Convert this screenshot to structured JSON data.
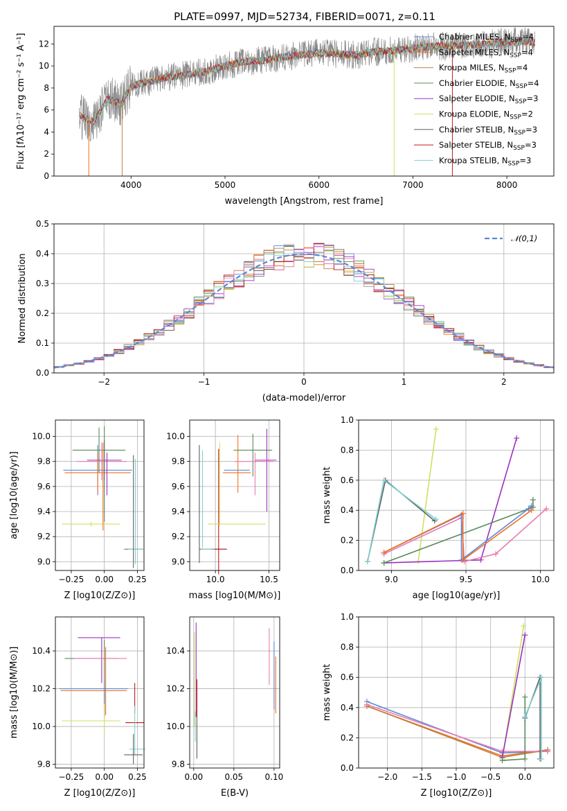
{
  "figure_title": "PLATE=0997, MJD=52734, FIBERID=0071, z=0.11",
  "colors": {
    "Chabrier MILES": "#5b87d8",
    "Salpeter MILES": "#f07020",
    "Kroupa MILES": "#c08040",
    "Chabrier ELODIE": "#5a8a5a",
    "Salpeter ELODIE": "#9a30c0",
    "Kroupa ELODIE": "#d0e060",
    "Chabrier STELIB": "#606060",
    "Salpeter STELIB": "#c01818",
    "Kroupa STELIB": "#80d0d0",
    "extra_pink": "#e87ab0",
    "normal_curve": "#5b87d8"
  },
  "chart_data": [
    {
      "id": "spectrum",
      "type": "line",
      "xlabel": "wavelength [Angstrom, rest frame]",
      "ylabel": "Flux [fλ10⁻¹⁷ erg cm⁻² s⁻¹ A⁻¹]",
      "xlim": [
        3180,
        8500
      ],
      "ylim": [
        0,
        13.6
      ],
      "xticks": [
        4000,
        5000,
        6000,
        7000,
        8000
      ],
      "yticks": [
        0,
        2,
        4,
        6,
        8,
        10,
        12
      ],
      "legend": [
        {
          "name": "Chabrier MILES",
          "n_ssp": "4"
        },
        {
          "name": "Salpeter MILES",
          "n_ssp": "4"
        },
        {
          "name": "Kroupa MILES",
          "n_ssp": "4"
        },
        {
          "name": "Chabrier ELODIE",
          "n_ssp": "4"
        },
        {
          "name": "Salpeter ELODIE",
          "n_ssp": "3"
        },
        {
          "name": "Kroupa ELODIE",
          "n_ssp": "2"
        },
        {
          "name": "Chabrier STELIB",
          "n_ssp": "3"
        },
        {
          "name": "Salpeter STELIB",
          "n_ssp": "3"
        },
        {
          "name": "Kroupa STELIB",
          "n_ssp": "3"
        }
      ],
      "legend_position": "right",
      "continuum": [
        [
          3450,
          5.5
        ],
        [
          3600,
          4.9
        ],
        [
          3750,
          7.0
        ],
        [
          3900,
          6.6
        ],
        [
          4000,
          8.2
        ],
        [
          4200,
          8.6
        ],
        [
          4400,
          9.0
        ],
        [
          4600,
          9.2
        ],
        [
          4800,
          9.5
        ],
        [
          5000,
          10.0
        ],
        [
          5200,
          10.4
        ],
        [
          5400,
          10.5
        ],
        [
          5600,
          10.8
        ],
        [
          5800,
          11.0
        ],
        [
          6000,
          11.2
        ],
        [
          6200,
          11.1
        ],
        [
          6400,
          11.0
        ],
        [
          6600,
          11.3
        ],
        [
          6800,
          11.4
        ],
        [
          7000,
          11.6
        ],
        [
          7200,
          11.8
        ],
        [
          7400,
          11.8
        ],
        [
          7600,
          11.9
        ],
        [
          7800,
          12.0
        ],
        [
          8000,
          12.2
        ],
        [
          8200,
          12.2
        ],
        [
          8300,
          12.1
        ]
      ],
      "dips": [
        [
          3550,
          0
        ],
        [
          3905,
          0
        ],
        [
          6800,
          0
        ],
        [
          7420,
          0
        ]
      ]
    },
    {
      "id": "residuals",
      "type": "line",
      "xlabel": "(data-model)/error",
      "ylabel": "Normed distribution",
      "xlim": [
        -2.5,
        2.5
      ],
      "ylim": [
        0,
        0.5
      ],
      "xticks": [
        -2,
        -1,
        0,
        1,
        2
      ],
      "yticks": [
        0.0,
        0.1,
        0.2,
        0.3,
        0.4,
        0.5
      ],
      "grid": true,
      "legend": [
        {
          "name": "𝒩(0,1)"
        }
      ],
      "legend_position": "top-right",
      "bin_width": 0.1
    },
    {
      "id": "z-age",
      "type": "scatter",
      "xlabel": "Z [log10(Z/Z⊙)]",
      "ylabel": "age  [log10(age/yr)]",
      "xlim": [
        -0.37,
        0.3
      ],
      "ylim": [
        8.93,
        10.13
      ],
      "xticks": [
        -0.25,
        0.0,
        0.25
      ],
      "yticks": [
        9.0,
        9.2,
        9.4,
        9.6,
        9.8,
        10.0
      ],
      "grid": true,
      "errorbars": [
        {
          "c": "Chabrier MILES",
          "x": -0.05,
          "xe": 0.26,
          "y": 9.73,
          "ye": 0.2
        },
        {
          "c": "Salpeter MILES",
          "x": -0.05,
          "xe": 0.25,
          "y": 9.71,
          "ye": 0.16
        },
        {
          "c": "Chabrier ELODIE",
          "x": -0.04,
          "xe": 0.2,
          "y": 9.89,
          "ye": 0.18
        },
        {
          "c": "Salpeter ELODIE",
          "x": 0.0,
          "xe": 0.13,
          "y": 9.81,
          "ye": 0.16
        },
        {
          "c": "extra_pink",
          "x": -0.02,
          "xe": 0.19,
          "y": 9.8,
          "ye": 0.15
        },
        {
          "c": "Kroupa ELODIE",
          "x": -0.1,
          "xe": 0.22,
          "y": 9.3,
          "ye": 0.02
        },
        {
          "c": "Chabrier STELIB",
          "x": 0.22,
          "xe": 0.07,
          "y": 9.1,
          "ye": 0.0
        },
        {
          "c": "Kroupa STELIB",
          "x": 0.24,
          "xe": 0.06,
          "y": 9.1,
          "ye": 0.0
        },
        {
          "c": "Chabrier STELIB",
          "x": 0.22,
          "xe": 0.0,
          "y": 9.4,
          "ye": 0.45
        },
        {
          "c": "Kroupa STELIB",
          "x": 0.235,
          "xe": 0.0,
          "y": 9.4,
          "ye": 0.42
        },
        {
          "c": "Chabrier ELODIE",
          "x": 0.0,
          "xe": 0.0,
          "y": 9.7,
          "ye": 0.38
        },
        {
          "c": "Salpeter ELODIE",
          "x": 0.02,
          "xe": 0.0,
          "y": 9.7,
          "ye": 0.17
        },
        {
          "c": "Salpeter MILES",
          "x": -0.01,
          "xe": 0.0,
          "y": 9.6,
          "ye": 0.35
        }
      ]
    },
    {
      "id": "mass-age",
      "type": "scatter",
      "xlabel": "mass [log10(M/M⊙)]",
      "ylabel": "",
      "xlim": [
        9.76,
        10.6
      ],
      "ylim": [
        8.93,
        10.13
      ],
      "xticks": [
        10.0,
        10.5
      ],
      "yticks": [
        9.0,
        9.2,
        9.4,
        9.6,
        9.8,
        10.0
      ],
      "grid": true,
      "errorbars": [
        {
          "c": "Chabrier STELIB",
          "x": 9.85,
          "xe": 0.0,
          "y": 9.46,
          "ye": 0.47
        },
        {
          "c": "Kroupa STELIB",
          "x": 9.88,
          "xe": 0.0,
          "y": 9.5,
          "ye": 0.39
        },
        {
          "c": "Chabrier STELIB",
          "x": 9.98,
          "xe": 0.13,
          "y": 9.1,
          "ye": 0.0
        },
        {
          "c": "Salpeter STELIB",
          "x": 10.03,
          "xe": 0.07,
          "y": 9.1,
          "ye": 0.0
        },
        {
          "c": "Kroupa STELIB",
          "x": 9.93,
          "xe": 0.06,
          "y": 9.1,
          "ye": 0.0
        },
        {
          "c": "Salpeter STELIB",
          "x": 10.03,
          "xe": 0.0,
          "y": 9.4,
          "ye": 0.5
        },
        {
          "c": "Kroupa ELODIE",
          "x": 10.04,
          "xe": 0.0,
          "y": 9.62,
          "ye": 0.33
        },
        {
          "c": "Kroupa ELODIE",
          "x": 10.2,
          "xe": 0.27,
          "y": 9.3,
          "ye": 0.0
        },
        {
          "c": "Chabrier MILES",
          "x": 10.2,
          "xe": 0.12,
          "y": 9.73,
          "ye": 0.0
        },
        {
          "c": "Salpeter MILES",
          "x": 10.2,
          "xe": 0.13,
          "y": 9.71,
          "ye": 0.0
        },
        {
          "c": "Salpeter MILES",
          "x": 10.21,
          "xe": 0.0,
          "y": 9.78,
          "ye": 0.23
        },
        {
          "c": "Chabrier ELODIE",
          "x": 10.35,
          "xe": 0.18,
          "y": 9.89,
          "ye": 0.0
        },
        {
          "c": "Chabrier ELODIE",
          "x": 10.35,
          "xe": 0.0,
          "y": 9.85,
          "ye": 0.17
        },
        {
          "c": "Salpeter ELODIE",
          "x": 10.47,
          "xe": 0.1,
          "y": 9.81,
          "ye": 0.0
        },
        {
          "c": "Salpeter ELODIE",
          "x": 10.48,
          "xe": 0.0,
          "y": 9.73,
          "ye": 0.33
        },
        {
          "c": "extra_pink",
          "x": 10.36,
          "xe": 0.18,
          "y": 9.8,
          "ye": 0.0
        },
        {
          "c": "extra_pink",
          "x": 10.37,
          "xe": 0.0,
          "y": 9.7,
          "ye": 0.17
        }
      ]
    },
    {
      "id": "weight-age",
      "type": "line",
      "xlabel": "age  [log10(age/yr)]",
      "ylabel": "mass weight",
      "xlim": [
        8.78,
        10.09
      ],
      "ylim": [
        0,
        1.0
      ],
      "xticks": [
        9.0,
        9.5,
        10.0
      ],
      "yticks": [
        0.0,
        0.2,
        0.4,
        0.6,
        0.8,
        1.0
      ],
      "grid": true,
      "series": [
        {
          "c": "Kroupa ELODIE",
          "x": [
            9.18,
            9.3
          ],
          "y": [
            0.06,
            0.94
          ]
        },
        {
          "c": "Salpeter ELODIE",
          "x": [
            8.95,
            9.6,
            9.84
          ],
          "y": [
            0.05,
            0.07,
            0.88
          ]
        },
        {
          "c": "extra_pink",
          "x": [
            8.95,
            9.47,
            9.49,
            9.7,
            10.04
          ],
          "y": [
            0.11,
            0.35,
            0.06,
            0.11,
            0.41
          ]
        },
        {
          "c": "Chabrier ELODIE",
          "x": [
            8.95,
            9.95,
            9.95
          ],
          "y": [
            0.05,
            0.42,
            0.47
          ]
        },
        {
          "c": "Chabrier MILES",
          "x": [
            8.95,
            9.47,
            9.47,
            9.92,
            9.94
          ],
          "y": [
            0.12,
            0.37,
            0.07,
            0.41,
            0.43
          ]
        },
        {
          "c": "Salpeter MILES",
          "x": [
            8.95,
            9.48,
            9.48,
            9.94
          ],
          "y": [
            0.12,
            0.38,
            0.07,
            0.4
          ]
        },
        {
          "c": "Chabrier STELIB",
          "x": [
            8.84,
            8.96,
            9.29
          ],
          "y": [
            0.06,
            0.6,
            0.33
          ]
        },
        {
          "c": "Kroupa STELIB",
          "x": [
            8.84,
            8.95,
            9.3
          ],
          "y": [
            0.06,
            0.6,
            0.34
          ]
        }
      ]
    },
    {
      "id": "z-mass",
      "type": "scatter",
      "xlabel": "Z [log10(Z/Z⊙)]",
      "ylabel": "mass [log10(M/M⊙)]",
      "xlim": [
        -0.37,
        0.3
      ],
      "ylim": [
        9.78,
        10.58
      ],
      "xticks": [
        -0.25,
        0.0,
        0.25
      ],
      "yticks": [
        9.8,
        10.0,
        10.2,
        10.4
      ],
      "grid": true,
      "errorbars": [
        {
          "c": "Salpeter ELODIE",
          "x": -0.04,
          "xe": 0.16,
          "y": 10.47,
          "ye": 0.0
        },
        {
          "c": "Salpeter ELODIE",
          "x": -0.02,
          "xe": 0.0,
          "y": 10.35,
          "ye": 0.12
        },
        {
          "c": "Chabrier ELODIE",
          "x": -0.1,
          "xe": 0.2,
          "y": 10.36,
          "ye": 0.0
        },
        {
          "c": "extra_pink",
          "x": -0.03,
          "xe": 0.2,
          "y": 10.36,
          "ye": 0.0
        },
        {
          "c": "Chabrier MILES",
          "x": -0.08,
          "xe": 0.26,
          "y": 10.2,
          "ye": 0.0
        },
        {
          "c": "Salpeter MILES",
          "x": -0.08,
          "xe": 0.25,
          "y": 10.19,
          "ye": 0.0
        },
        {
          "c": "Chabrier ELODIE",
          "x": 0.0,
          "xe": 0.0,
          "y": 10.26,
          "ye": 0.2
        },
        {
          "c": "Salpeter MILES",
          "x": 0.01,
          "xe": 0.0,
          "y": 10.24,
          "ye": 0.18
        },
        {
          "c": "Chabrier MILES",
          "x": 0.0,
          "xe": 0.0,
          "y": 10.15,
          "ye": 0.1
        },
        {
          "c": "Kroupa ELODIE",
          "x": -0.1,
          "xe": 0.22,
          "y": 10.03,
          "ye": 0.0
        },
        {
          "c": "Kroupa ELODIE",
          "x": 0.0,
          "xe": 0.0,
          "y": 10.04,
          "ye": 0.08
        },
        {
          "c": "Salpeter STELIB",
          "x": 0.23,
          "xe": 0.07,
          "y": 10.02,
          "ye": 0.0
        },
        {
          "c": "Salpeter STELIB",
          "x": 0.23,
          "xe": 0.0,
          "y": 10.15,
          "ye": 0.08
        },
        {
          "c": "Kroupa STELIB",
          "x": 0.25,
          "xe": 0.06,
          "y": 9.88,
          "ye": 0.0
        },
        {
          "c": "Kroupa STELIB",
          "x": 0.23,
          "xe": 0.0,
          "y": 9.98,
          "ye": 0.13
        },
        {
          "c": "Chabrier STELIB",
          "x": 0.22,
          "xe": 0.07,
          "y": 9.85,
          "ye": 0.0
        },
        {
          "c": "Chabrier STELIB",
          "x": 0.22,
          "xe": 0.0,
          "y": 9.88,
          "ye": 0.08
        }
      ]
    },
    {
      "id": "ebv-mass",
      "type": "scatter",
      "xlabel": "E(B-V)",
      "ylabel": "",
      "xlim": [
        -0.005,
        0.107
      ],
      "ylim": [
        9.78,
        10.58
      ],
      "xticks": [
        0.0,
        0.05,
        0.1
      ],
      "yticks": [
        9.8,
        10.0,
        10.2,
        10.4
      ],
      "grid": true,
      "errorbars": [
        {
          "c": "Kroupa ELODIE",
          "x": 0.001,
          "xe": 0.0,
          "y": 10.25,
          "ye": 0.25
        },
        {
          "c": "Salpeter ELODIE",
          "x": 0.003,
          "xe": 0.0,
          "y": 10.3,
          "ye": 0.25
        },
        {
          "c": "Chabrier STELIB",
          "x": 0.004,
          "xe": 0.0,
          "y": 9.95,
          "ye": 0.12
        },
        {
          "c": "Salpeter STELIB",
          "x": 0.004,
          "xe": 0.0,
          "y": 10.15,
          "ye": 0.1
        },
        {
          "c": "Kroupa STELIB",
          "x": 0.002,
          "xe": 0.0,
          "y": 10.0,
          "ye": 0.08
        },
        {
          "c": "extra_pink",
          "x": 0.094,
          "xe": 0.0,
          "y": 10.37,
          "ye": 0.15
        },
        {
          "c": "Chabrier MILES",
          "x": 0.1,
          "xe": 0.0,
          "y": 10.27,
          "ye": 0.18
        },
        {
          "c": "Salpeter MILES",
          "x": 0.102,
          "xe": 0.0,
          "y": 10.22,
          "ye": 0.15
        }
      ]
    },
    {
      "id": "weight-z",
      "type": "line",
      "xlabel": "Z [log10(Z/Z⊙)]",
      "ylabel": "mass weight",
      "xlim": [
        -2.42,
        0.42
      ],
      "ylim": [
        0,
        1.0
      ],
      "xticks": [
        -2.0,
        -1.5,
        -1.0,
        -0.5,
        0.0
      ],
      "yticks": [
        0.0,
        0.2,
        0.4,
        0.6,
        0.8,
        1.0
      ],
      "grid": true,
      "series": [
        {
          "c": "Chabrier MILES",
          "x": [
            -2.3,
            -0.33,
            0.33
          ],
          "y": [
            0.44,
            0.1,
            0.11
          ]
        },
        {
          "c": "Salpeter MILES",
          "x": [
            -2.3,
            -0.33,
            0.33
          ],
          "y": [
            0.41,
            0.08,
            0.12
          ]
        },
        {
          "c": "Kroupa MILES",
          "x": [
            -2.3,
            -0.33,
            0.33
          ],
          "y": [
            0.41,
            0.07,
            0.12
          ]
        },
        {
          "c": "extra_pink",
          "x": [
            -2.3,
            -0.33,
            0.33
          ],
          "y": [
            0.42,
            0.11,
            0.11
          ]
        },
        {
          "c": "Kroupa ELODIE",
          "x": [
            -0.33,
            -0.02
          ],
          "y": [
            0.06,
            0.94
          ]
        },
        {
          "c": "Salpeter ELODIE",
          "x": [
            -0.33,
            0.0
          ],
          "y": [
            0.07,
            0.88
          ]
        },
        {
          "c": "Chabrier ELODIE",
          "x": [
            -0.33,
            0.0,
            0.0
          ],
          "y": [
            0.05,
            0.06,
            0.47
          ]
        },
        {
          "c": "Chabrier STELIB",
          "x": [
            0.0,
            0.22,
            0.22
          ],
          "y": [
            0.33,
            0.6,
            0.06
          ]
        },
        {
          "c": "Kroupa STELIB",
          "x": [
            0.0,
            0.24,
            0.24
          ],
          "y": [
            0.34,
            0.6,
            0.06
          ]
        }
      ]
    }
  ]
}
